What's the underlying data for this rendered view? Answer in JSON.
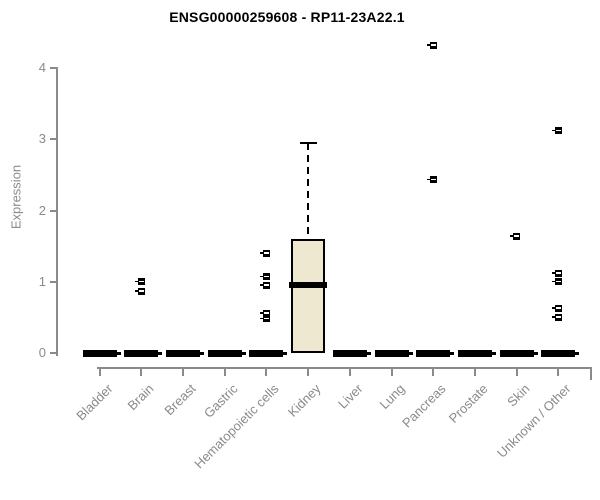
{
  "chart_data": {
    "type": "box",
    "title": "ENSG00000259608 - RP11-23A22.1",
    "ylabel": "Expression",
    "xlabel": "",
    "ylim": [
      0,
      4
    ],
    "yticks": [
      0,
      1,
      2,
      3,
      4
    ],
    "grid": false,
    "legend": "none",
    "categories": [
      "Bladder",
      "Brain",
      "Breast",
      "Gastric",
      "Hematopoietic cells",
      "Kidney",
      "Liver",
      "Lung",
      "Pancreas",
      "Prostate",
      "Skin",
      "Unknown / Other"
    ],
    "boxes": [
      {
        "category": "Bladder",
        "q1": 0,
        "median": 0,
        "q3": 0,
        "whisker_low": 0,
        "whisker_high": 0,
        "outliers": []
      },
      {
        "category": "Brain",
        "q1": 0,
        "median": 0,
        "q3": 0,
        "whisker_low": 0,
        "whisker_high": 0,
        "outliers": [
          1.0,
          0.87
        ]
      },
      {
        "category": "Breast",
        "q1": 0,
        "median": 0,
        "q3": 0,
        "whisker_low": 0,
        "whisker_high": 0,
        "outliers": []
      },
      {
        "category": "Gastric",
        "q1": 0,
        "median": 0,
        "q3": 0,
        "whisker_low": 0,
        "whisker_high": 0,
        "outliers": []
      },
      {
        "category": "Hematopoietic cells",
        "q1": 0,
        "median": 0,
        "q3": 0,
        "whisker_low": 0,
        "whisker_high": 0,
        "outliers": [
          1.4,
          1.07,
          0.95,
          0.56,
          0.48
        ]
      },
      {
        "category": "Kidney",
        "q1": 0,
        "median": 0.95,
        "q3": 1.6,
        "whisker_low": 0,
        "whisker_high": 2.95,
        "outliers": []
      },
      {
        "category": "Liver",
        "q1": 0,
        "median": 0,
        "q3": 0,
        "whisker_low": 0,
        "whisker_high": 0,
        "outliers": []
      },
      {
        "category": "Lung",
        "q1": 0,
        "median": 0,
        "q3": 0,
        "whisker_low": 0,
        "whisker_high": 0,
        "outliers": []
      },
      {
        "category": "Pancreas",
        "q1": 0,
        "median": 0,
        "q3": 0,
        "whisker_low": 0,
        "whisker_high": 0,
        "outliers": [
          4.32,
          2.43
        ]
      },
      {
        "category": "Prostate",
        "q1": 0,
        "median": 0,
        "q3": 0,
        "whisker_low": 0,
        "whisker_high": 0,
        "outliers": []
      },
      {
        "category": "Skin",
        "q1": 0,
        "median": 0,
        "q3": 0,
        "whisker_low": 0,
        "whisker_high": 0,
        "outliers": [
          1.64
        ]
      },
      {
        "category": "Unknown / Other",
        "q1": 0,
        "median": 0,
        "q3": 0,
        "whisker_low": 0,
        "whisker_high": 0,
        "outliers": [
          3.12,
          1.12,
          1.0,
          0.63,
          0.5
        ]
      }
    ],
    "colors": {
      "box_fill": "#efe8d1",
      "box_border": "#000000",
      "median": "#000000",
      "outlier": "#000000",
      "axis": "#8a8a8a",
      "title": "#000000",
      "background": "#ffffff"
    }
  }
}
